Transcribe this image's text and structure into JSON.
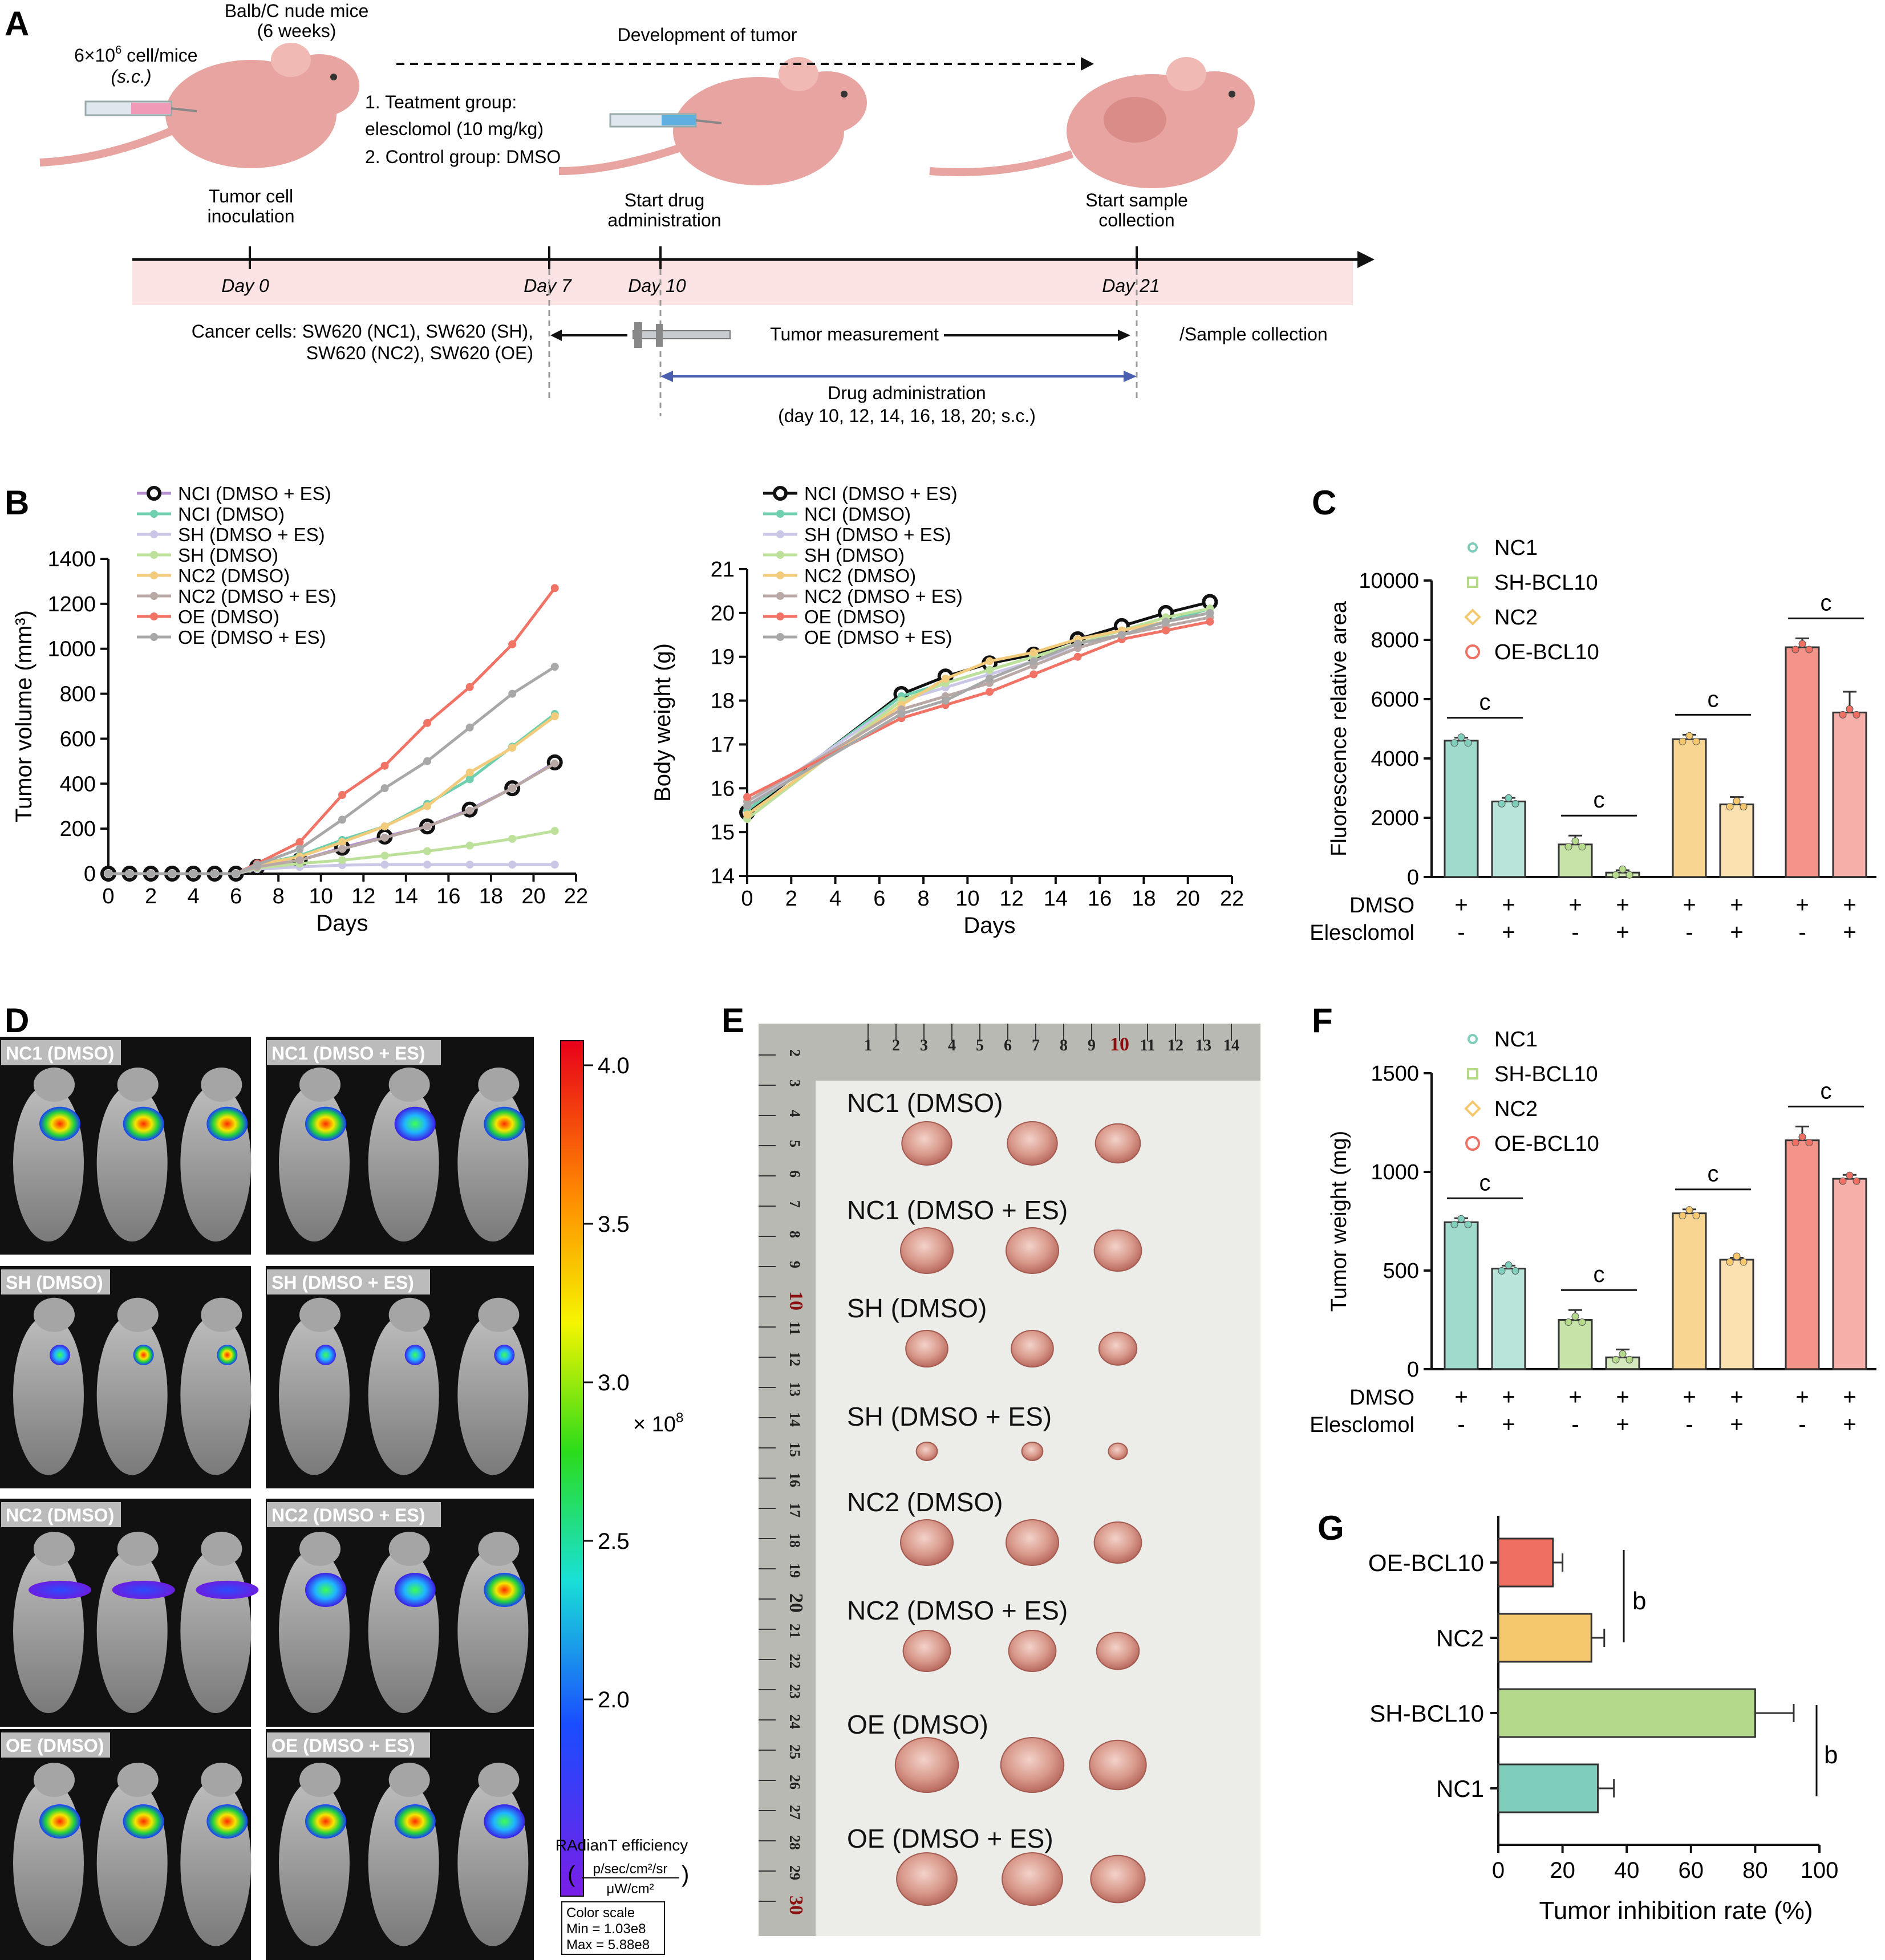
{
  "panel_letters": [
    "A",
    "B",
    "C",
    "D",
    "E",
    "F",
    "G"
  ],
  "colors": {
    "nc1": "#7fcdbb",
    "sh": "#b5d98a",
    "nc2": "#f5c86e",
    "oe": "#ef6f62",
    "nc1_line": "#6fcfae",
    "oe_line": "#f07366",
    "gray_line": "#a8a8a8",
    "purple_line": "#b48fd1",
    "yellow_line": "#f2cb7c",
    "green_line": "#bde09b",
    "lavender_line": "#c9c6e6",
    "timeline_band": "#fbe3e3",
    "axis": "#111111"
  },
  "panelA": {
    "inoculum": "6×10",
    "inoculum_exp": "6",
    "inoculum_unit": " cell/mice",
    "route": "(s.c.)",
    "mouse_title_1": "Balb/C nude mice",
    "mouse_title_2": "(6 weeks)",
    "development": "Development of tumor",
    "group1": "1. Teatment group:",
    "group1b": "elesclomol (10 mg/kg)",
    "group2": "2. Control group: DMSO",
    "step1a": "Tumor cell",
    "step1b": "inoculation",
    "step2a": "Start drug",
    "step2b": "administration",
    "step3a": "Start sample",
    "step3b": "collection",
    "days": [
      "Day 0",
      "Day 7",
      "Day 10",
      "Day 21"
    ],
    "cells_1": "Cancer cells: SW620 (NC1), SW620 (SH),",
    "cells_2": "SW620 (NC2), SW620 (OE)",
    "measure": "Tumor measurement",
    "sample": "/Sample collection",
    "drug_1": "Drug administration",
    "drug_2": "(day 10, 12, 14, 16, 18, 20; s.c.)"
  },
  "legend_B": [
    "NCI (DMSO + ES)",
    "NCI (DMSO)",
    "SH (DMSO + ES)",
    "SH (DMSO)",
    "NC2 (DMSO)",
    "NC2 (DMSO + ES)",
    "OE (DMSO)",
    "OE (DMSO + ES)"
  ],
  "legend_C": [
    "NC1",
    "SH-BCL10",
    "NC2",
    "OE-BCL10"
  ],
  "labels_DE": {
    "D": [
      "NC1 (DMSO)",
      "NC1 (DMSO + ES)",
      "SH (DMSO)",
      "SH (DMSO + ES)",
      "NC2 (DMSO)",
      "NC2 (DMSO + ES)",
      "OE (DMSO)",
      "OE (DMSO + ES)"
    ],
    "colorbar_ticks": [
      "4.0",
      "3.5",
      "3.0",
      "2.5",
      "2.0"
    ],
    "multiplier": "× 10",
    "multiplier_exp": "8",
    "colorbar_title": "RAdianT efficiency",
    "colorbar_unit_num": "p/sec/cm²/sr",
    "colorbar_unit_den": "μW/cm²",
    "scale_1": "Color scale",
    "scale_2": "Min = 1.03e8",
    "scale_3": "Max = 5.88e8",
    "ruler_top": [
      "1",
      "2",
      "3",
      "4",
      "5",
      "6",
      "7",
      "8",
      "9",
      "10",
      "11",
      "12",
      "13",
      "14"
    ],
    "ruler_left": [
      "2",
      "3",
      "4",
      "5",
      "6",
      "7",
      "8",
      "9",
      "10",
      "11",
      "12",
      "13",
      "14",
      "15",
      "16",
      "17",
      "18",
      "19",
      "20",
      "21",
      "22",
      "23",
      "24",
      "25",
      "26",
      "27",
      "28",
      "29",
      "30"
    ],
    "E": [
      "NC1 (DMSO)",
      "NC1 (DMSO + ES)",
      "SH (DMSO)",
      "SH (DMSO + ES)",
      "NC2 (DMSO)",
      "NC2 (DMSO + ES)",
      "OE (DMSO)",
      "OE (DMSO + ES)"
    ]
  },
  "chart_data": [
    {
      "id": "B-left",
      "type": "line",
      "xlabel": "Days",
      "ylabel": "Tumor volume (mm³)",
      "xlim": [
        0,
        22
      ],
      "ylim": [
        0,
        1400
      ],
      "xticks": [
        0,
        2,
        4,
        6,
        8,
        10,
        12,
        14,
        16,
        18,
        20,
        22
      ],
      "yticks": [
        0,
        200,
        400,
        600,
        800,
        1000,
        1200,
        1400
      ],
      "x": [
        0,
        1,
        2,
        3,
        4,
        5,
        6,
        7,
        9,
        11,
        13,
        15,
        17,
        19,
        21
      ],
      "series": [
        {
          "name": "NCI (DMSO + ES)",
          "color": "#b48fd1",
          "values": [
            0,
            0,
            0,
            0,
            0,
            0,
            0,
            30,
            60,
            115,
            165,
            210,
            285,
            380,
            495
          ]
        },
        {
          "name": "NCI (DMSO)",
          "color": "#6fcfae",
          "values": [
            0,
            0,
            0,
            0,
            0,
            0,
            0,
            40,
            80,
            150,
            210,
            310,
            420,
            565,
            710
          ]
        },
        {
          "name": "SH (DMSO + ES)",
          "color": "#c9c6e6",
          "values": [
            0,
            0,
            0,
            0,
            0,
            0,
            0,
            20,
            30,
            38,
            40,
            40,
            40,
            40,
            40
          ]
        },
        {
          "name": "SH (DMSO)",
          "color": "#bde09b",
          "values": [
            0,
            0,
            0,
            0,
            0,
            0,
            0,
            25,
            45,
            60,
            80,
            100,
            125,
            155,
            190
          ]
        },
        {
          "name": "NC2 (DMSO)",
          "color": "#f2cb7c",
          "values": [
            0,
            0,
            0,
            0,
            0,
            0,
            0,
            40,
            75,
            140,
            210,
            300,
            450,
            560,
            700
          ]
        },
        {
          "name": "NC2 (DMSO + ES)",
          "color": "#b9a9a6",
          "values": [
            0,
            0,
            0,
            0,
            0,
            0,
            0,
            30,
            60,
            110,
            160,
            210,
            280,
            380,
            490
          ]
        },
        {
          "name": "OE (DMSO)",
          "color": "#f07366",
          "values": [
            0,
            0,
            0,
            0,
            0,
            0,
            0,
            45,
            140,
            350,
            480,
            670,
            830,
            1020,
            1270
          ]
        },
        {
          "name": "OE (DMSO + ES)",
          "color": "#a8a8a8",
          "values": [
            0,
            0,
            0,
            0,
            0,
            0,
            0,
            40,
            110,
            240,
            380,
            500,
            650,
            800,
            920
          ]
        }
      ]
    },
    {
      "id": "B-right",
      "type": "line",
      "xlabel": "Days",
      "ylabel": "Body weight (g)",
      "xlim": [
        0,
        22
      ],
      "ylim": [
        14,
        21
      ],
      "xticks": [
        0,
        2,
        4,
        6,
        8,
        10,
        12,
        14,
        16,
        18,
        20,
        22
      ],
      "yticks": [
        14,
        15,
        16,
        17,
        18,
        19,
        20,
        21
      ],
      "x": [
        0,
        7,
        9,
        11,
        13,
        15,
        17,
        19,
        21
      ],
      "series": [
        {
          "name": "NCI (DMSO + ES)",
          "color": "#111111",
          "values": [
            15.45,
            18.15,
            18.55,
            18.85,
            19.05,
            19.4,
            19.7,
            20.0,
            20.25
          ]
        },
        {
          "name": "NCI (DMSO)",
          "color": "#6fcfae",
          "values": [
            15.5,
            18.1,
            18.4,
            18.7,
            19.0,
            19.3,
            19.5,
            19.8,
            20.1
          ]
        },
        {
          "name": "SH (DMSO + ES)",
          "color": "#c9c6e6",
          "values": [
            15.6,
            18.0,
            18.3,
            18.6,
            18.9,
            19.2,
            19.5,
            19.8,
            20.0
          ]
        },
        {
          "name": "SH (DMSO)",
          "color": "#bde09b",
          "values": [
            15.3,
            18.0,
            18.4,
            18.7,
            19.0,
            19.3,
            19.6,
            19.9,
            20.1
          ]
        },
        {
          "name": "NC2 (DMSO)",
          "color": "#f2cb7c",
          "values": [
            15.4,
            17.9,
            18.5,
            18.9,
            19.1,
            19.4,
            19.6,
            19.8,
            20.0
          ]
        },
        {
          "name": "NC2 (DMSO + ES)",
          "color": "#b9a9a6",
          "values": [
            15.7,
            17.8,
            18.1,
            18.4,
            18.8,
            19.2,
            19.5,
            19.7,
            19.9
          ]
        },
        {
          "name": "OE (DMSO)",
          "color": "#f07366",
          "values": [
            15.8,
            17.6,
            17.9,
            18.2,
            18.6,
            19.0,
            19.4,
            19.6,
            19.8
          ]
        },
        {
          "name": "OE (DMSO + ES)",
          "color": "#a8a8a8",
          "values": [
            15.6,
            17.7,
            18.0,
            18.5,
            18.9,
            19.3,
            19.5,
            19.8,
            20.0
          ]
        }
      ]
    },
    {
      "id": "C",
      "type": "bar",
      "ylabel": "Fluorescence relative area",
      "ylim": [
        0,
        10000
      ],
      "yticks": [
        0,
        2000,
        4000,
        6000,
        8000,
        10000
      ],
      "groups": [
        "NC1",
        "SH-BCL10",
        "NC2",
        "OE-BCL10"
      ],
      "conditions": [
        "DMSO",
        "Elesclomol"
      ],
      "row_DMSO": [
        "+",
        "+"
      ],
      "row_Elesclomol": [
        "-",
        "+"
      ],
      "values": [
        [
          4600,
          2550
        ],
        [
          1100,
          150
        ],
        [
          4650,
          2450
        ],
        [
          7750,
          5550
        ]
      ],
      "errors": [
        [
          100,
          120
        ],
        [
          300,
          80
        ],
        [
          150,
          250
        ],
        [
          300,
          700
        ]
      ],
      "sig": [
        "c",
        "c",
        "c",
        "c"
      ]
    },
    {
      "id": "F",
      "type": "bar",
      "ylabel": "Tumor weight (mg)",
      "ylim": [
        0,
        1500
      ],
      "yticks": [
        0,
        500,
        1000,
        1500
      ],
      "groups": [
        "NC1",
        "SH-BCL10",
        "NC2",
        "OE-BCL10"
      ],
      "conditions": [
        "DMSO",
        "Elesclomol"
      ],
      "row_DMSO": [
        "+",
        "+"
      ],
      "row_Elesclomol": [
        "-",
        "+"
      ],
      "values": [
        [
          745,
          510
        ],
        [
          250,
          60
        ],
        [
          790,
          555
        ],
        [
          1160,
          965
        ]
      ],
      "errors": [
        [
          20,
          15
        ],
        [
          50,
          40
        ],
        [
          20,
          10
        ],
        [
          70,
          20
        ]
      ],
      "sig": [
        "c",
        "c",
        "c",
        "c"
      ]
    },
    {
      "id": "G",
      "type": "bar",
      "orientation": "horizontal",
      "xlabel": "Tumor inhibition rate (%)",
      "xlim": [
        0,
        100
      ],
      "xticks": [
        0,
        20,
        40,
        60,
        80,
        100
      ],
      "categories": [
        "OE-BCL10",
        "NC2",
        "SH-BCL10",
        "NC1"
      ],
      "values": [
        17,
        29,
        80,
        31
      ],
      "errors": [
        3,
        4,
        12,
        5
      ],
      "sig": [
        "b",
        "b"
      ]
    }
  ]
}
